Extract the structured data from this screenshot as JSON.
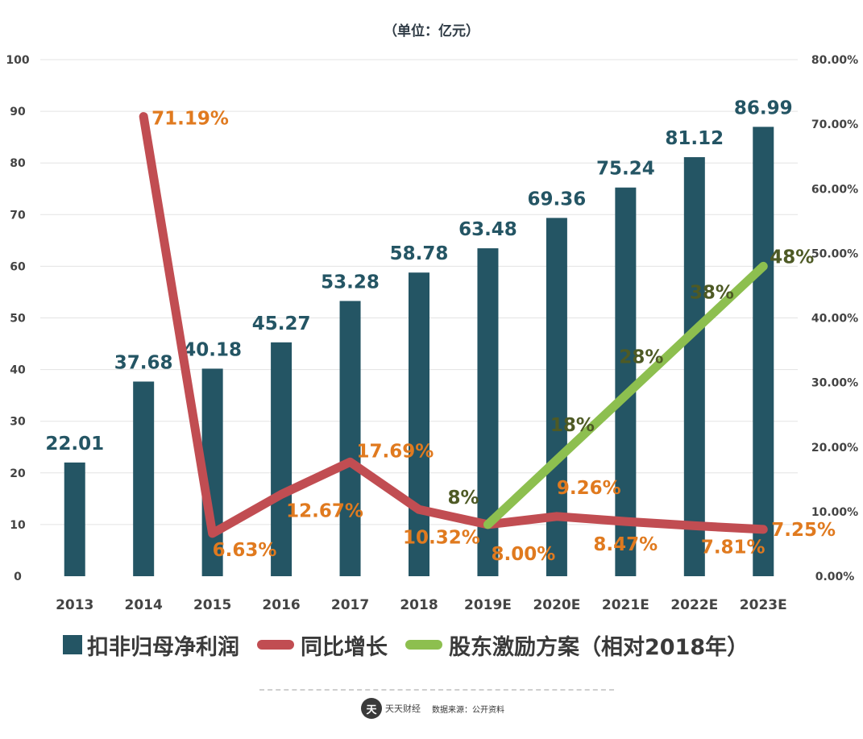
{
  "unit_label": "（单位：亿元）",
  "legend": {
    "bar_label": "扣非归母净利润",
    "growth_label": "同比增长",
    "incentive_label": "股东激励方案（相对2018年）"
  },
  "footer": {
    "logo_text": "天",
    "brand": "天天财经",
    "source": "数据来源：公开资料"
  },
  "colors": {
    "bar": "#245564",
    "growth_line": "#c14d52",
    "growth_label": "#e07a1f",
    "incentive_line": "#8dbf4f",
    "incentive_label": "#4e5a25",
    "axis_text": "#444444",
    "grid": "#e3e3e3"
  },
  "chart_data": {
    "type": "bar+line",
    "title": "",
    "unit": "亿元",
    "categories": [
      "2013",
      "2014",
      "2015",
      "2016",
      "2017",
      "2018",
      "2019E",
      "2020E",
      "2021E",
      "2022E",
      "2023E"
    ],
    "left_axis": {
      "min": 0,
      "max": 100,
      "step": 10,
      "ticks": [
        "0",
        "10",
        "20",
        "30",
        "40",
        "50",
        "60",
        "70",
        "80",
        "90",
        "100"
      ]
    },
    "right_axis": {
      "min": 0,
      "max": 80,
      "step": 10,
      "ticks": [
        "0.00%",
        "10.00%",
        "20.00%",
        "30.00%",
        "40.00%",
        "50.00%",
        "60.00%",
        "70.00%",
        "80.00%"
      ]
    },
    "series": [
      {
        "name": "扣非归母净利润",
        "type": "bar",
        "axis": "left",
        "values": [
          22.01,
          37.68,
          40.18,
          45.27,
          53.28,
          58.78,
          63.48,
          69.36,
          75.24,
          81.12,
          86.99
        ],
        "labels": [
          "22.01",
          "37.68",
          "40.18",
          "45.27",
          "53.28",
          "58.78",
          "63.48",
          "69.36",
          "75.24",
          "81.12",
          "86.99"
        ]
      },
      {
        "name": "同比增长",
        "type": "line",
        "axis": "right",
        "values": [
          null,
          71.19,
          6.63,
          12.67,
          17.69,
          10.32,
          8.0,
          9.26,
          8.47,
          7.81,
          7.25
        ],
        "labels": [
          null,
          "71.19%",
          "6.63%",
          "12.67%",
          "17.69%",
          "10.32%",
          "8.00%",
          "9.26%",
          "8.47%",
          "7.81%",
          "7.25%"
        ]
      },
      {
        "name": "股东激励方案（相对2018年）",
        "type": "line",
        "axis": "right",
        "values": [
          null,
          null,
          null,
          null,
          null,
          null,
          8,
          18,
          28,
          38,
          48
        ],
        "labels": [
          null,
          null,
          null,
          null,
          null,
          null,
          "8%",
          "18%",
          "28%",
          "38%",
          "48%"
        ]
      }
    ]
  }
}
